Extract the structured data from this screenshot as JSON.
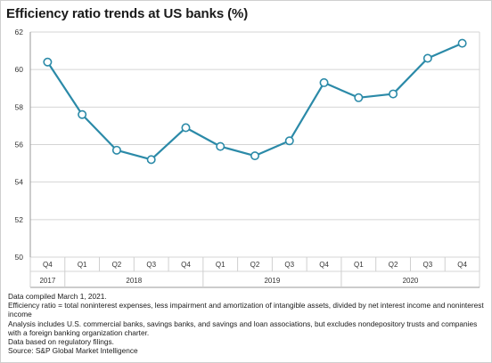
{
  "title": "Efficiency ratio trends at US banks (%)",
  "chart_data": {
    "type": "line",
    "title": "Efficiency ratio trends at US banks (%)",
    "xlabel": "",
    "ylabel": "",
    "ylim": [
      50,
      62
    ],
    "yticks": [
      "50",
      "52",
      "54",
      "56",
      "58",
      "60",
      "62"
    ],
    "grid": true,
    "categories": [
      "Q4",
      "Q1",
      "Q2",
      "Q3",
      "Q4",
      "Q1",
      "Q2",
      "Q3",
      "Q4",
      "Q1",
      "Q2",
      "Q3",
      "Q4"
    ],
    "year_groups": [
      {
        "label": "2017",
        "start": 0,
        "end": 0
      },
      {
        "label": "2018",
        "start": 1,
        "end": 4
      },
      {
        "label": "2019",
        "start": 5,
        "end": 8
      },
      {
        "label": "2020",
        "start": 9,
        "end": 12
      }
    ],
    "series": [
      {
        "values": [
          60.4,
          57.6,
          55.7,
          55.2,
          56.9,
          55.9,
          55.4,
          56.2,
          59.3,
          58.5,
          58.7,
          60.6,
          61.4
        ]
      }
    ],
    "line_color": "#2b8aa8",
    "grid_color": "#d4d4d4"
  },
  "notes": [
    "Data compiled March 1, 2021.",
    "Efficiency ratio = total noninterest expenses, less impairment and amortization of intangible assets, divided by net interest income and noninterest income",
    "Analysis includes U.S. commercial banks, savings banks, and savings and loan associations, but excludes nondepository trusts and companies with a foreign banking organization charter.",
    "Data based on regulatory filings.",
    "Source: S&P Global Market Intelligence"
  ]
}
